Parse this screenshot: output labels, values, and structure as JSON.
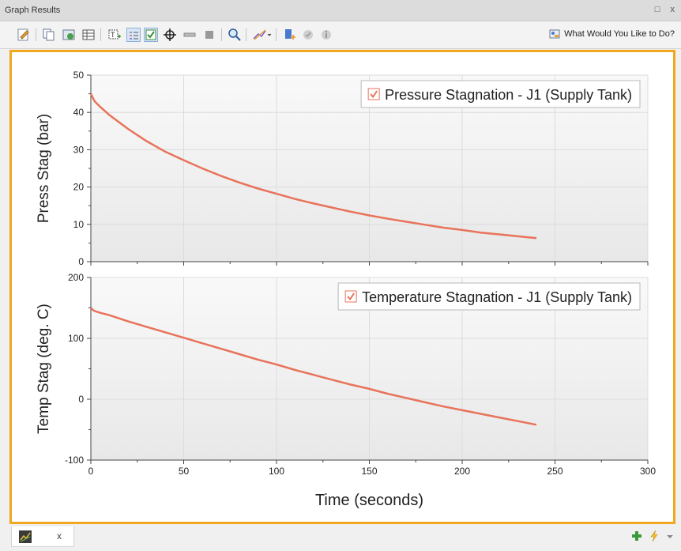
{
  "window": {
    "title": "Graph Results",
    "restore_glyph": "□",
    "close_glyph": "x"
  },
  "toolbar": {
    "help_label": "What Would You Like to Do?"
  },
  "bottom": {
    "tab_close_glyph": "x"
  },
  "colors": {
    "accent": "#f0a81e",
    "series": "#e8735a",
    "plot_bg_top": "#f8f8f8",
    "plot_bg_bottom": "#e9e9e9"
  },
  "chart_data": [
    {
      "type": "line",
      "title": "",
      "xlabel": "",
      "ylabel": "Press Stag (bar)",
      "xlim": [
        0,
        300
      ],
      "ylim": [
        0,
        50
      ],
      "xticks": [
        "0",
        "50",
        "100",
        "150",
        "200",
        "250",
        "300"
      ],
      "yticks": [
        "0",
        "10",
        "20",
        "30",
        "40",
        "50"
      ],
      "grid": true,
      "legend": "top-right",
      "series": [
        {
          "name": "Pressure Stagnation - J1 (Supply Tank)",
          "x": [
            0,
            1,
            2,
            5,
            10,
            20,
            30,
            40,
            50,
            60,
            70,
            80,
            90,
            100,
            110,
            120,
            130,
            140,
            150,
            160,
            170,
            180,
            190,
            200,
            210,
            220,
            230,
            240
          ],
          "y": [
            45,
            44,
            43,
            41.5,
            39.3,
            35.6,
            32.3,
            29.5,
            27.2,
            25,
            23,
            21.2,
            19.6,
            18.2,
            16.8,
            15.6,
            14.5,
            13.4,
            12.4,
            11.5,
            10.7,
            9.9,
            9.1,
            8.5,
            7.8,
            7.3,
            6.8,
            6.3
          ]
        }
      ]
    },
    {
      "type": "line",
      "title": "",
      "xlabel": "Time (seconds)",
      "ylabel": "Temp Stag (deg. C)",
      "xlim": [
        0,
        300
      ],
      "ylim": [
        -100,
        200
      ],
      "xticks": [
        "0",
        "50",
        "100",
        "150",
        "200",
        "250",
        "300"
      ],
      "yticks": [
        "-100",
        "0",
        "100",
        "200"
      ],
      "grid": true,
      "legend": "top-right",
      "series": [
        {
          "name": "Temperature Stagnation - J1 (Supply Tank)",
          "x": [
            0,
            1,
            2,
            5,
            10,
            20,
            30,
            40,
            50,
            60,
            70,
            80,
            90,
            100,
            110,
            120,
            130,
            140,
            150,
            160,
            170,
            180,
            190,
            200,
            210,
            220,
            230,
            240
          ],
          "y": [
            150,
            147,
            145,
            142,
            138,
            128,
            119,
            110,
            101,
            92,
            83,
            74,
            65,
            57,
            48,
            40,
            32,
            24,
            17,
            9,
            2,
            -5,
            -12,
            -18,
            -24,
            -30,
            -36,
            -42
          ]
        }
      ]
    }
  ]
}
